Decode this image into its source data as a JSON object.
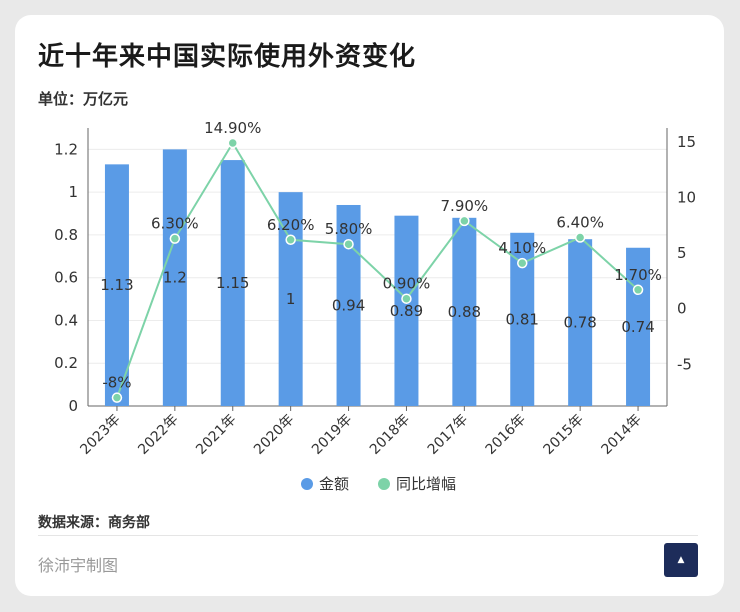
{
  "header": {
    "title": "近十年来中国实际使用外资变化",
    "unit": "单位：万亿元"
  },
  "footer": {
    "source": "数据来源：商务部",
    "author": "徐沛宇制图"
  },
  "colors": {
    "bar": "#5a9be6",
    "line": "#7dd3a8"
  },
  "chart_data": {
    "type": "bar",
    "categories": [
      "2023年",
      "2022年",
      "2021年",
      "2020年",
      "2019年",
      "2018年",
      "2017年",
      "2016年",
      "2015年",
      "2014年"
    ],
    "series": [
      {
        "name": "金额",
        "type": "bar",
        "axis": "left",
        "values": [
          1.13,
          1.2,
          1.15,
          1,
          0.94,
          0.89,
          0.88,
          0.81,
          0.78,
          0.74
        ],
        "labels": [
          "1.13",
          "1.2",
          "1.15",
          "1",
          "0.94",
          "0.89",
          "0.88",
          "0.81",
          "0.78",
          "0.74"
        ]
      },
      {
        "name": "同比增幅",
        "type": "line",
        "axis": "right",
        "values": [
          -8,
          6.3,
          14.9,
          6.2,
          5.8,
          0.9,
          7.9,
          4.1,
          6.4,
          1.7
        ],
        "labels": [
          "-8%",
          "6.30%",
          "14.90%",
          "6.20%",
          "5.80%",
          "0.90%",
          "7.90%",
          "4.10%",
          "6.40%",
          "1.70%"
        ]
      }
    ],
    "y_left": {
      "min": 0,
      "max": 1.3,
      "ticks": [
        "0",
        "0.2",
        "0.4",
        "0.6",
        "0.8",
        "1",
        "1.2"
      ]
    },
    "y_right": {
      "min": -8.75,
      "max": 16.25,
      "ticks": [
        "-5",
        "0",
        "5",
        "10",
        "15"
      ]
    },
    "legend": {
      "position": "bottom",
      "items": [
        "金额",
        "同比增幅"
      ]
    },
    "grid": true
  }
}
